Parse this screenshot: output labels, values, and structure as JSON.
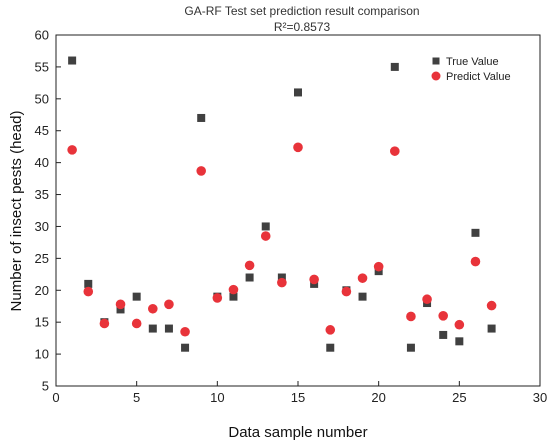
{
  "chart_data": {
    "type": "scatter",
    "title": "GA-RF Test set prediction result comparison",
    "subtitle": "R²=0.8573",
    "xlabel": "Data sample number",
    "ylabel": "Number of insect pests (head)",
    "xlim": [
      0,
      30
    ],
    "ylim": [
      5,
      60
    ],
    "x_ticks": [
      0,
      5,
      10,
      15,
      20,
      25,
      30
    ],
    "y_ticks": [
      5,
      10,
      15,
      20,
      25,
      30,
      35,
      40,
      45,
      50,
      55,
      60
    ],
    "grid": false,
    "legend_position": "top-right",
    "x": [
      1,
      2,
      3,
      4,
      5,
      6,
      7,
      8,
      9,
      10,
      11,
      12,
      13,
      14,
      15,
      16,
      17,
      18,
      19,
      20,
      21,
      22,
      23,
      24,
      25,
      26,
      27
    ],
    "series": [
      {
        "name": "True Value",
        "marker": "square",
        "color": "#404040",
        "values": [
          56,
          21,
          15,
          17,
          19,
          14,
          14,
          11,
          47,
          19,
          19,
          22,
          30,
          22,
          51,
          21,
          11,
          20,
          19,
          23,
          55,
          11,
          18,
          13,
          12,
          29,
          14
        ]
      },
      {
        "name": "Predict Value",
        "marker": "circle",
        "color": "#e8333a",
        "values": [
          42,
          19.8,
          14.8,
          17.8,
          14.8,
          17.1,
          17.8,
          13.5,
          38.7,
          18.8,
          20.1,
          23.9,
          28.5,
          21.2,
          42.4,
          21.7,
          13.8,
          19.8,
          21.9,
          23.7,
          41.8,
          15.9,
          18.6,
          16,
          14.6,
          24.5,
          17.6
        ]
      }
    ]
  }
}
